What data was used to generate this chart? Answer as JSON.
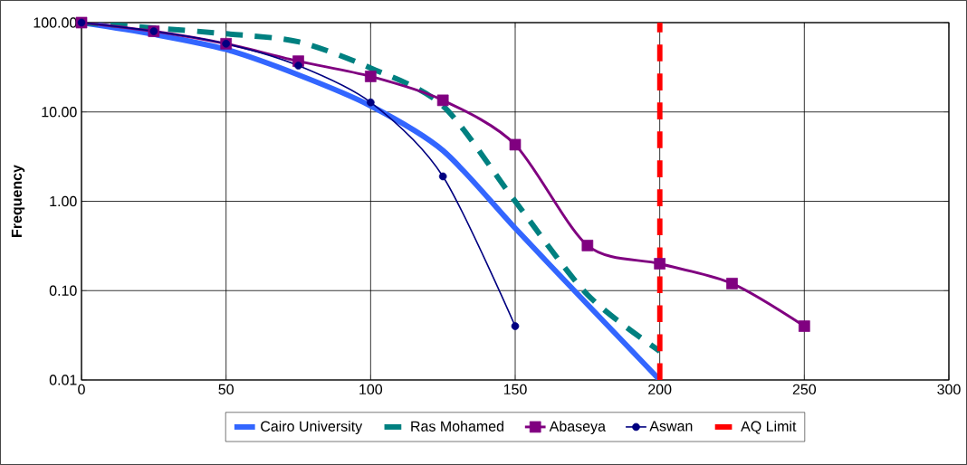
{
  "chart_data": {
    "type": "line",
    "ylabel": "Frequency",
    "log": "y",
    "grid": true,
    "legend": "bottom",
    "xlim": [
      0,
      300
    ],
    "xticks": [
      0,
      50,
      100,
      150,
      200,
      250,
      300
    ],
    "ylim": [
      0.01,
      100
    ],
    "yticks": [
      {
        "value": 0.01,
        "label": "0.01"
      },
      {
        "value": 0.1,
        "label": "0.10"
      },
      {
        "value": 1,
        "label": "1.00"
      },
      {
        "value": 10,
        "label": "10.00"
      },
      {
        "value": 100,
        "label": "100.00"
      }
    ],
    "series": [
      {
        "name": "Cairo University",
        "color": "#3366ff",
        "marker": "none",
        "line_style": "solid",
        "x": [
          0,
          25,
          50,
          75,
          100,
          125,
          150,
          175,
          200
        ],
        "values": [
          100,
          74,
          50,
          26,
          11.7,
          3.7,
          0.5,
          0.07,
          0.01
        ]
      },
      {
        "name": "Ras Mohamed",
        "color": "#008080",
        "marker": "none",
        "line_style": "dashed",
        "x": [
          0,
          25,
          50,
          75,
          100,
          125,
          150,
          175,
          200
        ],
        "values": [
          100,
          87,
          75,
          61,
          31,
          11.7,
          1.0,
          0.09,
          0.021
        ]
      },
      {
        "name": "Abaseya",
        "color": "#800080",
        "marker": "square",
        "line_style": "solid",
        "x": [
          0,
          25,
          50,
          75,
          100,
          125,
          150,
          175,
          200,
          225,
          250
        ],
        "values": [
          100,
          80,
          58,
          37,
          25,
          13.5,
          4.3,
          0.32,
          0.2,
          0.12,
          0.04
        ]
      },
      {
        "name": "Aswan",
        "color": "#000080",
        "marker": "circle",
        "line_style": "solid",
        "x": [
          0,
          25,
          50,
          75,
          100,
          125,
          150
        ],
        "values": [
          100,
          80,
          58,
          33,
          12.8,
          1.9,
          0.04
        ]
      },
      {
        "name": "AQ Limit",
        "color": "#ff0000",
        "marker": "none",
        "line_style": "dashed",
        "x": [
          200,
          200
        ],
        "values": [
          0.01,
          100
        ]
      }
    ]
  }
}
